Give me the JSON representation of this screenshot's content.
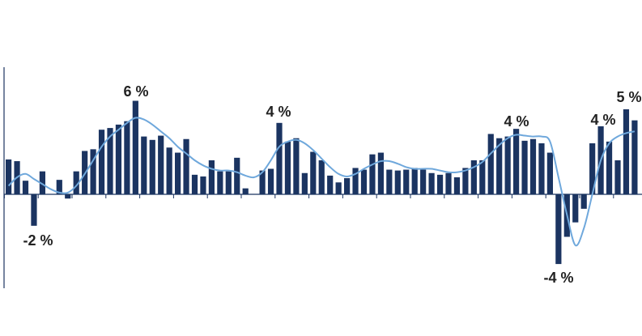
{
  "colors": {
    "bar": "#1b3461",
    "trend": "#6fa8dc",
    "axis": "#1b3461",
    "text": "#222222"
  },
  "chart_data": {
    "type": "bar",
    "title": "",
    "xlabel": "",
    "ylabel": "",
    "grid": false,
    "legend": "none",
    "ylim": [
      -5,
      6
    ],
    "series": [
      {
        "type": "bar",
        "values": [
          2.05,
          1.95,
          0.8,
          -1.85,
          1.35,
          0,
          0.85,
          -0.25,
          1.35,
          2.55,
          2.65,
          3.8,
          3.9,
          4.1,
          4.3,
          5.5,
          3.4,
          3.2,
          3.45,
          2.75,
          2.45,
          3.25,
          1.15,
          1.05,
          2.0,
          1.35,
          1.35,
          2.15,
          0.35,
          0,
          1.4,
          1.5,
          4.2,
          3.1,
          3.3,
          1.25,
          2.5,
          2.0,
          1.1,
          0.7,
          0.95,
          1.55,
          1.45,
          2.35,
          2.45,
          1.45,
          1.4,
          1.45,
          1.55,
          1.45,
          1.25,
          1.15,
          1.25,
          1.0,
          1.55,
          2.0,
          2.0,
          3.55,
          3.3,
          3.4,
          3.85,
          3.15,
          3.25,
          3.0,
          2.45,
          -4.1,
          -2.5,
          -1.65,
          -0.85,
          3.0,
          4.0,
          3.1,
          2.0,
          5.0,
          4.35
        ]
      },
      {
        "type": "line",
        "values": [
          0.5,
          1.0,
          1.2,
          0.9,
          0.6,
          0.3,
          0.1,
          0.1,
          0.5,
          1.2,
          2.0,
          2.8,
          3.4,
          3.8,
          4.2,
          4.5,
          4.4,
          4.1,
          3.7,
          3.3,
          2.8,
          2.4,
          2.0,
          1.7,
          1.5,
          1.4,
          1.4,
          1.3,
          1.1,
          1.0,
          1.3,
          2.0,
          2.8,
          3.1,
          3.2,
          3.0,
          2.6,
          2.1,
          1.6,
          1.2,
          1.05,
          1.2,
          1.5,
          1.75,
          1.95,
          1.95,
          1.8,
          1.6,
          1.5,
          1.5,
          1.5,
          1.4,
          1.3,
          1.3,
          1.4,
          1.6,
          1.9,
          2.4,
          2.9,
          3.3,
          3.5,
          3.45,
          3.4,
          3.4,
          3.1,
          1.0,
          -1.2,
          -3.0,
          -2.0,
          0.0,
          2.0,
          3.0,
          3.4,
          3.6,
          3.7
        ]
      }
    ],
    "annotations": [
      "-2 %",
      "6 %",
      "4 %",
      "4 %",
      "-4 %",
      "4 %",
      "5 %"
    ]
  }
}
